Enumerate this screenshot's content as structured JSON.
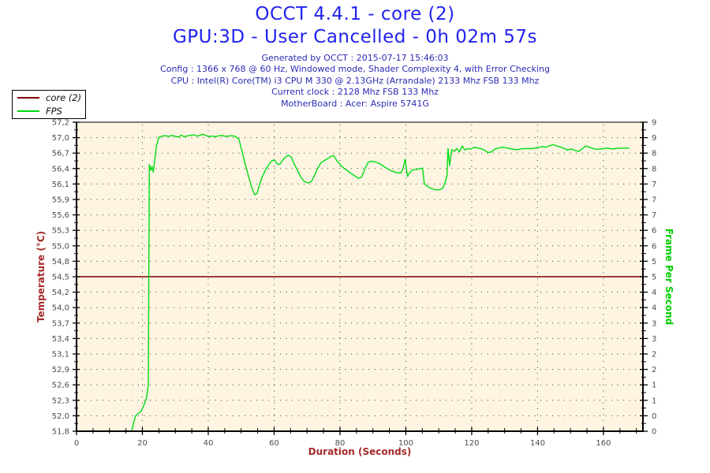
{
  "header": {
    "title": "OCCT 4.4.1 - core (2)",
    "subtitle": "GPU:3D - User Cancelled - 0h 02m 57s",
    "meta_lines": [
      "Generated by OCCT : 2015-07-17 15:46:03",
      "Config : 1366 x 768 @ 60 Hz, Windowed mode, Shader Complexity 4, with Error Checking",
      "CPU : Intel(R) Core(TM) i3 CPU M 330 @ 2.13GHz (Arrandale) 2133 Mhz FSB 133 Mhz",
      "Current clock : 2128 Mhz FSB 133 Mhz",
      "MotherBoard : Acer: Aspire 5741G"
    ]
  },
  "chart_data": {
    "type": "line",
    "title": "OCCT 4.4.1 - core (2)",
    "subtitle": "GPU:3D - User Cancelled - 0h 02m 57s",
    "plot_bg": "#FDF4E1",
    "grid": "dotted",
    "legend": {
      "position": "top-left",
      "entries": [
        {
          "label": "core (2)",
          "color": "#7A0000"
        },
        {
          "label": "FPS",
          "color": "#00DC14"
        }
      ]
    },
    "x_axis": {
      "title": "Duration (Seconds)",
      "title_color": "#A52A2A",
      "tick_labels": [
        "0",
        "20",
        "40",
        "60",
        "80",
        "100",
        "120",
        "140",
        "160"
      ],
      "major_step": 20,
      "minor_step": 5,
      "range": [
        0,
        172
      ]
    },
    "y_left": {
      "title": "Temperature (°C)",
      "title_color": "#A52A2A",
      "tick_labels": [
        "57,2",
        "57,0",
        "56,7",
        "56,4",
        "56,1",
        "55,9",
        "55,6",
        "55,3",
        "55,0",
        "54,8",
        "54,5",
        "54,2",
        "54,0",
        "53,7",
        "53,4",
        "53,1",
        "52,9",
        "52,6",
        "52,3",
        "52,0",
        "51,8"
      ],
      "range": [
        51.8,
        57.2
      ]
    },
    "y_right": {
      "title": "Frame Per Second",
      "title_color": "#00CE00",
      "tick_labels": [
        "9",
        "9",
        "8",
        "8",
        "7",
        "7",
        "7",
        "6",
        "6",
        "5",
        "5",
        "4",
        "4",
        "3",
        "3",
        "2",
        "2",
        "1",
        "1",
        "0",
        "0"
      ],
      "range": [
        0,
        9.36
      ]
    },
    "series": [
      {
        "name": "core (2)",
        "axis": "left",
        "color": "#7A0000",
        "constant_value": 54.5
      },
      {
        "name": "FPS",
        "axis": "right",
        "color": "#00DC14",
        "points": [
          [
            16.8,
            0.03
          ],
          [
            17.4,
            0.28
          ],
          [
            18.0,
            0.48
          ],
          [
            18.9,
            0.55
          ],
          [
            19.7,
            0.62
          ],
          [
            20.4,
            0.78
          ],
          [
            21.2,
            0.98
          ],
          [
            21.8,
            1.4
          ],
          [
            22.1,
            8.08
          ],
          [
            22.6,
            7.9
          ],
          [
            22.9,
            8.02
          ],
          [
            23.3,
            7.85
          ],
          [
            24.3,
            8.65
          ],
          [
            25.0,
            8.9
          ],
          [
            26,
            8.94
          ],
          [
            27,
            8.95
          ],
          [
            28,
            8.93
          ],
          [
            29,
            8.96
          ],
          [
            30,
            8.93
          ],
          [
            31,
            8.91
          ],
          [
            31.8,
            8.97
          ],
          [
            32.6,
            8.92
          ],
          [
            33.5,
            8.94
          ],
          [
            34.5,
            8.96
          ],
          [
            35.5,
            8.98
          ],
          [
            36.5,
            8.94
          ],
          [
            37.5,
            8.96
          ],
          [
            38.3,
            9.0
          ],
          [
            39.2,
            8.96
          ],
          [
            40.2,
            8.93
          ],
          [
            41.2,
            8.94
          ],
          [
            42.2,
            8.92
          ],
          [
            43.2,
            8.95
          ],
          [
            44.2,
            8.96
          ],
          [
            45.2,
            8.93
          ],
          [
            46.2,
            8.94
          ],
          [
            47.2,
            8.95
          ],
          [
            48.2,
            8.93
          ],
          [
            49.3,
            8.85
          ],
          [
            50.2,
            8.5
          ],
          [
            51.2,
            8.1
          ],
          [
            52.3,
            7.7
          ],
          [
            53.3,
            7.35
          ],
          [
            54.1,
            7.16
          ],
          [
            54.8,
            7.2
          ],
          [
            55.5,
            7.45
          ],
          [
            56.3,
            7.68
          ],
          [
            57.2,
            7.88
          ],
          [
            58.2,
            8.05
          ],
          [
            59.2,
            8.18
          ],
          [
            60.1,
            8.22
          ],
          [
            60.9,
            8.1
          ],
          [
            61.7,
            8.08
          ],
          [
            62.5,
            8.2
          ],
          [
            63.4,
            8.3
          ],
          [
            64.3,
            8.36
          ],
          [
            65.2,
            8.3
          ],
          [
            66.1,
            8.1
          ],
          [
            67.1,
            7.9
          ],
          [
            68.1,
            7.7
          ],
          [
            69.2,
            7.56
          ],
          [
            70.3,
            7.52
          ],
          [
            71.3,
            7.56
          ],
          [
            72.3,
            7.75
          ],
          [
            73.3,
            7.98
          ],
          [
            74.3,
            8.14
          ],
          [
            75.3,
            8.2
          ],
          [
            76.3,
            8.26
          ],
          [
            77.2,
            8.32
          ],
          [
            78.1,
            8.35
          ],
          [
            79.0,
            8.2
          ],
          [
            80.0,
            8.08
          ],
          [
            81.0,
            7.98
          ],
          [
            82.1,
            7.9
          ],
          [
            83.2,
            7.82
          ],
          [
            84.4,
            7.74
          ],
          [
            85.6,
            7.66
          ],
          [
            86.6,
            7.7
          ],
          [
            87.6,
            7.96
          ],
          [
            88.6,
            8.15
          ],
          [
            89.6,
            8.18
          ],
          [
            90.6,
            8.16
          ],
          [
            91.6,
            8.12
          ],
          [
            92.6,
            8.07
          ],
          [
            93.6,
            8.0
          ],
          [
            94.6,
            7.94
          ],
          [
            95.6,
            7.89
          ],
          [
            96.6,
            7.85
          ],
          [
            97.6,
            7.83
          ],
          [
            98.5,
            7.82
          ],
          [
            99.2,
            7.98
          ],
          [
            99.8,
            8.24
          ],
          [
            100.5,
            7.72
          ],
          [
            101.3,
            7.85
          ],
          [
            102.2,
            7.92
          ],
          [
            103.2,
            7.93
          ],
          [
            104.2,
            7.95
          ],
          [
            105.1,
            7.97
          ],
          [
            105.6,
            7.5
          ],
          [
            106.5,
            7.42
          ],
          [
            107.5,
            7.36
          ],
          [
            108.5,
            7.33
          ],
          [
            109.5,
            7.31
          ],
          [
            110.5,
            7.32
          ],
          [
            111.3,
            7.37
          ],
          [
            112.0,
            7.56
          ],
          [
            112.5,
            7.74
          ],
          [
            112.8,
            8.56
          ],
          [
            113.3,
            8.05
          ],
          [
            113.9,
            8.53
          ],
          [
            114.7,
            8.48
          ],
          [
            115.5,
            8.56
          ],
          [
            116.3,
            8.46
          ],
          [
            117.1,
            8.64
          ],
          [
            117.9,
            8.52
          ],
          [
            118.8,
            8.56
          ],
          [
            119.8,
            8.55
          ],
          [
            120.8,
            8.6
          ],
          [
            121.8,
            8.58
          ],
          [
            122.8,
            8.56
          ],
          [
            123.8,
            8.52
          ],
          [
            124.9,
            8.44
          ],
          [
            126.0,
            8.46
          ],
          [
            127.1,
            8.55
          ],
          [
            128.2,
            8.58
          ],
          [
            129.4,
            8.6
          ],
          [
            130.5,
            8.58
          ],
          [
            131.6,
            8.56
          ],
          [
            132.7,
            8.54
          ],
          [
            133.8,
            8.53
          ],
          [
            134.9,
            8.55
          ],
          [
            136.0,
            8.56
          ],
          [
            137.1,
            8.56
          ],
          [
            138.2,
            8.56
          ],
          [
            139.3,
            8.58
          ],
          [
            140.4,
            8.6
          ],
          [
            141.5,
            8.62
          ],
          [
            142.6,
            8.6
          ],
          [
            143.7,
            8.65
          ],
          [
            144.8,
            8.68
          ],
          [
            145.9,
            8.64
          ],
          [
            147.0,
            8.61
          ],
          [
            148.1,
            8.56
          ],
          [
            149.2,
            8.52
          ],
          [
            150.3,
            8.55
          ],
          [
            151.4,
            8.5
          ],
          [
            152.5,
            8.48
          ],
          [
            153.6,
            8.56
          ],
          [
            154.7,
            8.64
          ],
          [
            155.8,
            8.6
          ],
          [
            156.9,
            8.56
          ],
          [
            158.0,
            8.54
          ],
          [
            159.1,
            8.55
          ],
          [
            160.2,
            8.56
          ],
          [
            161.3,
            8.58
          ],
          [
            162.4,
            8.55
          ],
          [
            163.5,
            8.56
          ],
          [
            164.6,
            8.57
          ],
          [
            165.7,
            8.57
          ],
          [
            166.8,
            8.58
          ],
          [
            167.7,
            8.57
          ]
        ]
      }
    ],
    "style": {
      "tick_label_color": "#4D4D4D",
      "axis_color": "#000000"
    }
  }
}
